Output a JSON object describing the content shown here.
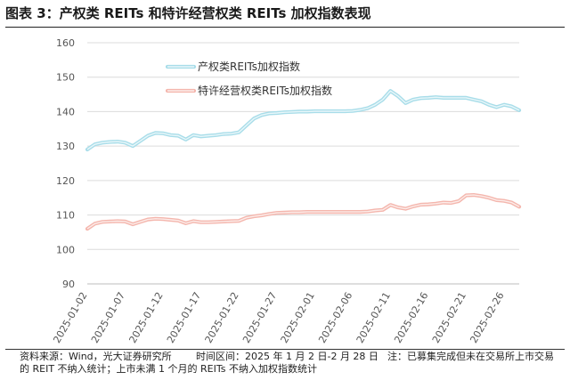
{
  "figure": {
    "title": "图表 3：产权类 REITs 和特许经营权类 REITs 加权指数表现"
  },
  "footer": {
    "source": "资料来源：Wind，光大证券研究所",
    "period": "时间区间：2025 年 1 月 2 日-2 月 28 日",
    "note": "注：已募集完成但未在交易所上市交易的 REIT 不纳入统计；上市未满 1 个月的 REITs 不纳入加权指数统计"
  },
  "chart_data": {
    "type": "line",
    "title": "",
    "xlabel": "",
    "ylabel": "",
    "ylim": [
      90,
      160
    ],
    "yticks": [
      90,
      100,
      110,
      120,
      130,
      140,
      150,
      160
    ],
    "grid": "horizontal",
    "legend_position": "top-left",
    "x_tick_labels": [
      "2025-01-02",
      "2025-01-07",
      "2025-01-12",
      "2025-01-17",
      "2025-01-22",
      "2025-01-27",
      "2025-02-01",
      "2025-02-06",
      "2025-02-11",
      "2025-02-16",
      "2025-02-21",
      "2025-02-26"
    ],
    "x": [
      "2025-01-02",
      "2025-01-03",
      "2025-01-04",
      "2025-01-05",
      "2025-01-06",
      "2025-01-07",
      "2025-01-08",
      "2025-01-09",
      "2025-01-10",
      "2025-01-11",
      "2025-01-12",
      "2025-01-13",
      "2025-01-14",
      "2025-01-15",
      "2025-01-16",
      "2025-01-17",
      "2025-01-18",
      "2025-01-19",
      "2025-01-20",
      "2025-01-21",
      "2025-01-22",
      "2025-01-23",
      "2025-01-24",
      "2025-01-25",
      "2025-01-26",
      "2025-01-27",
      "2025-01-28",
      "2025-01-29",
      "2025-01-30",
      "2025-01-31",
      "2025-02-01",
      "2025-02-02",
      "2025-02-03",
      "2025-02-04",
      "2025-02-05",
      "2025-02-06",
      "2025-02-07",
      "2025-02-08",
      "2025-02-09",
      "2025-02-10",
      "2025-02-11",
      "2025-02-12",
      "2025-02-13",
      "2025-02-14",
      "2025-02-15",
      "2025-02-16",
      "2025-02-17",
      "2025-02-18",
      "2025-02-19",
      "2025-02-20",
      "2025-02-21",
      "2025-02-22",
      "2025-02-23",
      "2025-02-24",
      "2025-02-25",
      "2025-02-26",
      "2025-02-27",
      "2025-02-28"
    ],
    "series": [
      {
        "name": "产权类REITs加权指数",
        "color": "#a8dde9",
        "values": [
          129.0,
          130.5,
          131.0,
          131.2,
          131.3,
          131.0,
          130.0,
          131.5,
          133.0,
          133.8,
          133.7,
          133.2,
          133.0,
          131.9,
          133.2,
          132.8,
          133.0,
          133.2,
          133.5,
          133.6,
          134.0,
          136.0,
          138.0,
          139.0,
          139.5,
          139.6,
          139.8,
          139.9,
          140.0,
          140.0,
          140.1,
          140.1,
          140.1,
          140.1,
          140.1,
          140.2,
          140.5,
          141.0,
          142.0,
          143.5,
          146.0,
          144.5,
          142.5,
          143.5,
          143.9,
          144.0,
          144.2,
          144.0,
          144.0,
          144.0,
          144.0,
          143.5,
          143.0,
          142.0,
          141.3,
          142.0,
          141.5,
          140.4
        ]
      },
      {
        "name": "特许经营权类REITs加权指数",
        "color": "#f4b6ad",
        "values": [
          106.0,
          107.5,
          108.0,
          108.1,
          108.2,
          108.1,
          107.3,
          108.0,
          108.7,
          108.9,
          108.8,
          108.6,
          108.4,
          107.6,
          108.2,
          107.9,
          107.9,
          108.0,
          108.1,
          108.2,
          108.3,
          109.2,
          109.6,
          109.9,
          110.3,
          110.6,
          110.7,
          110.8,
          110.8,
          110.9,
          110.9,
          110.9,
          110.9,
          110.9,
          110.9,
          110.9,
          110.9,
          111.0,
          111.3,
          111.5,
          112.9,
          112.2,
          111.8,
          112.5,
          113.0,
          113.1,
          113.3,
          113.6,
          113.5,
          114.0,
          115.7,
          115.8,
          115.5,
          115.0,
          114.3,
          114.1,
          113.6,
          112.4
        ]
      }
    ]
  }
}
